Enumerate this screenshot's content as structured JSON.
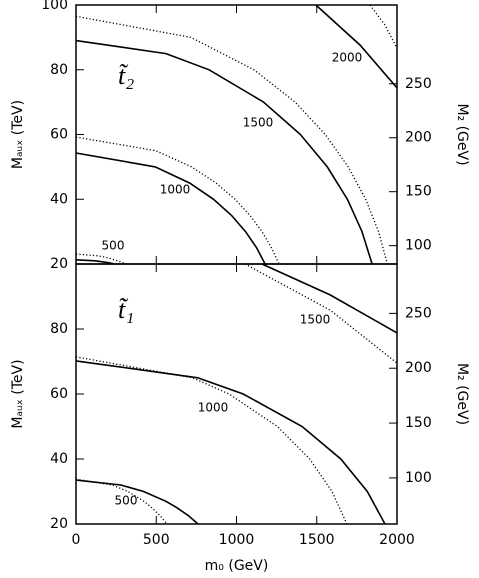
{
  "chart_data": [
    {
      "type": "contour",
      "annotation": "t̃₂",
      "xlim": [
        0,
        2000
      ],
      "ylim": [
        20,
        100
      ],
      "yticks": [
        20,
        40,
        60,
        80,
        100
      ],
      "ylabel": "Mₐᵤₓ (TeV)",
      "y2label": "M₂ (GeV)",
      "y2lim": [
        83,
        323
      ],
      "y2ticks": [
        100,
        150,
        200,
        250
      ],
      "contours": [
        {
          "level": 2000,
          "lines": [
            {
              "style": "solid",
              "x": [
                1495,
                1770,
                2000
              ],
              "y": [
                100,
                87.6,
                74.4
              ]
            },
            {
              "style": "dotted",
              "x": [
                1832,
                1925,
                2000
              ],
              "y": [
                100,
                93.8,
                86.7
              ]
            }
          ]
        },
        {
          "level": 1500,
          "lines": [
            {
              "style": "solid",
              "x": [
                0,
                561,
                829,
                1169,
                1398,
                1566,
                1691,
                1782,
                1845
              ],
              "y": [
                89,
                85,
                80,
                70,
                60,
                50,
                40,
                30,
                20
              ]
            },
            {
              "style": "dotted",
              "x": [
                0,
                716,
                1109,
                1365,
                1553,
                1696,
                1805,
                1885,
                1940
              ],
              "y": [
                96.5,
                90,
                80,
                70,
                60,
                50,
                40,
                30,
                20
              ]
            }
          ]
        },
        {
          "level": 1000,
          "lines": [
            {
              "style": "solid",
              "x": [
                0,
                494,
                709,
                857,
                969,
                1056,
                1125,
                1178
              ],
              "y": [
                54.3,
                50,
                45,
                40,
                35,
                30,
                25,
                20
              ]
            },
            {
              "style": "dotted",
              "x": [
                0,
                497,
                720,
                873,
                991,
                1084,
                1159,
                1218,
                1265
              ],
              "y": [
                59.2,
                55,
                50,
                45,
                40,
                35,
                30,
                25,
                20
              ]
            }
          ]
        },
        {
          "level": 500,
          "lines": [
            {
              "style": "solid",
              "x": [
                0,
                118,
                192,
                243
              ],
              "y": [
                21.3,
                21,
                20.5,
                20
              ]
            },
            {
              "style": "dotted",
              "x": [
                0,
                141,
                190,
                259,
                312
              ],
              "y": [
                23.1,
                22.5,
                22,
                21,
                20
              ]
            }
          ]
        }
      ]
    },
    {
      "type": "contour",
      "annotation": "t̃₁",
      "xlim": [
        0,
        2000
      ],
      "xticks": [
        0,
        500,
        1000,
        1500,
        2000
      ],
      "xlabel": "m₀ (GeV)",
      "ylim": [
        20,
        100
      ],
      "yticks": [
        20,
        40,
        60,
        80
      ],
      "ylabel": "Mₐᵤₓ (TeV)",
      "y2label": "M₂ (GeV)",
      "y2lim": [
        58,
        295
      ],
      "y2ticks": [
        100,
        150,
        200,
        250
      ],
      "contours": [
        {
          "level": 1500,
          "lines": [
            {
              "style": "solid",
              "x": [
                1159,
                1583,
                2000
              ],
              "y": [
                100,
                90.5,
                78.8
              ]
            },
            {
              "style": "dotted",
              "x": [
                1053,
                1583,
                2000
              ],
              "y": [
                100,
                85.8,
                69.5
              ]
            }
          ]
        },
        {
          "level": 1000,
          "lines": [
            {
              "style": "solid",
              "x": [
                0,
                759,
                1042,
                1409,
                1650,
                1815,
                1925
              ],
              "y": [
                70.2,
                65,
                60,
                50,
                40,
                30,
                20
              ]
            },
            {
              "style": "dotted",
              "x": [
                0,
                727,
                953,
                1255,
                1456,
                1595,
                1688
              ],
              "y": [
                71.4,
                65,
                60,
                50,
                40,
                30,
                20
              ]
            }
          ]
        },
        {
          "level": 500,
          "lines": [
            {
              "style": "solid",
              "x": [
                0,
                280,
                421,
                560,
                630,
                702,
                760
              ],
              "y": [
                33.5,
                32,
                30,
                27,
                25,
                22.5,
                20
              ]
            },
            {
              "style": "dotted",
              "x": [
                0,
                226,
                324,
                423,
                473,
                525,
                567
              ],
              "y": [
                33.8,
                32,
                30,
                27,
                25,
                22.5,
                20
              ]
            }
          ]
        }
      ]
    }
  ]
}
